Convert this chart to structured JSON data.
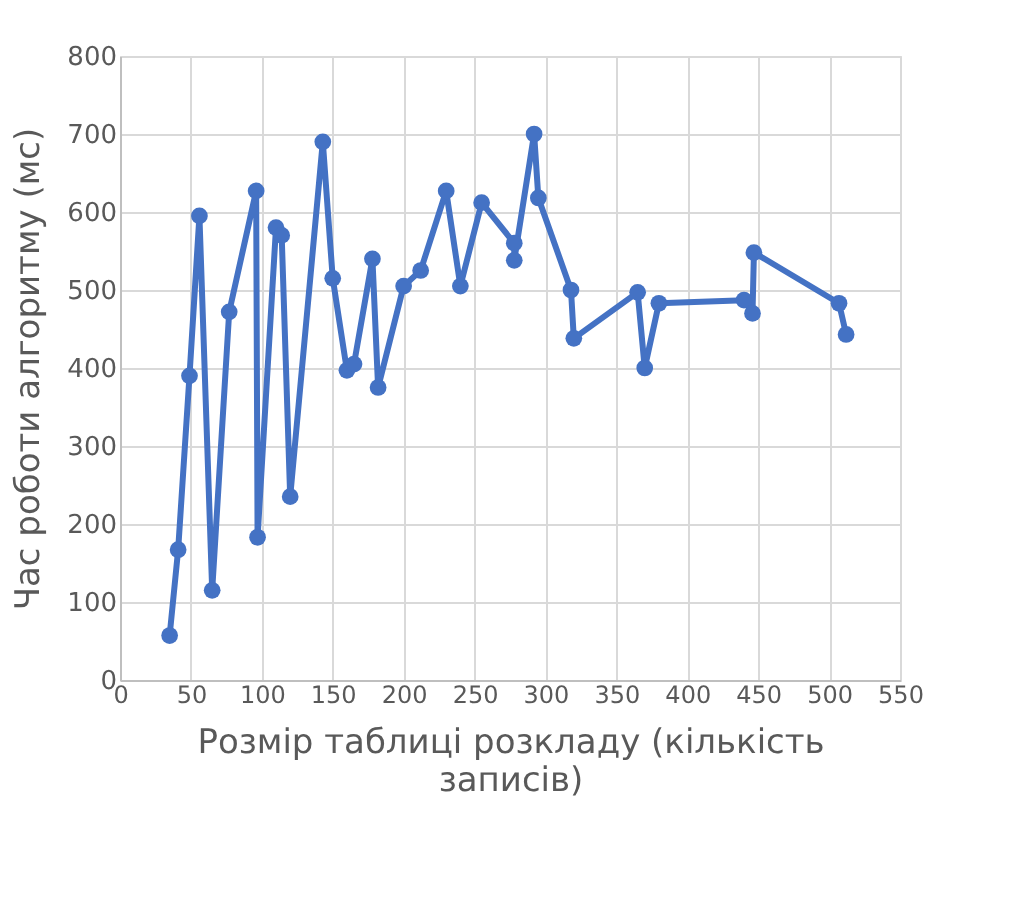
{
  "chart_data": {
    "type": "line",
    "xlabel": "Розмір таблиці розкладу (кількість записів)",
    "ylabel": "Час роботи алгоритму (мс)",
    "xlim": [
      0,
      550
    ],
    "xticks": [
      0,
      50,
      100,
      150,
      200,
      250,
      300,
      350,
      400,
      450,
      500,
      550
    ],
    "ylim": [
      0,
      800
    ],
    "yticks": [
      0,
      100,
      200,
      300,
      400,
      500,
      600,
      700,
      800
    ],
    "grid": true,
    "marker": "circle",
    "line_style": "solid",
    "series": [
      {
        "color": "#4472c4",
        "x": [
          35,
          41,
          49,
          56,
          65,
          77,
          96,
          97,
          110,
          114,
          120,
          143,
          150,
          160,
          165,
          178,
          182,
          200,
          212,
          230,
          240,
          255,
          278,
          278,
          292,
          295,
          318,
          320,
          365,
          370,
          380,
          440,
          446,
          447,
          507,
          512
        ],
        "values": [
          57,
          167,
          390,
          595,
          115,
          472,
          627,
          183,
          580,
          570,
          235,
          690,
          515,
          397,
          405,
          540,
          375,
          505,
          525,
          627,
          505,
          612,
          560,
          538,
          700,
          618,
          500,
          438,
          497,
          400,
          483,
          487,
          470,
          548,
          483,
          443
        ]
      }
    ]
  }
}
